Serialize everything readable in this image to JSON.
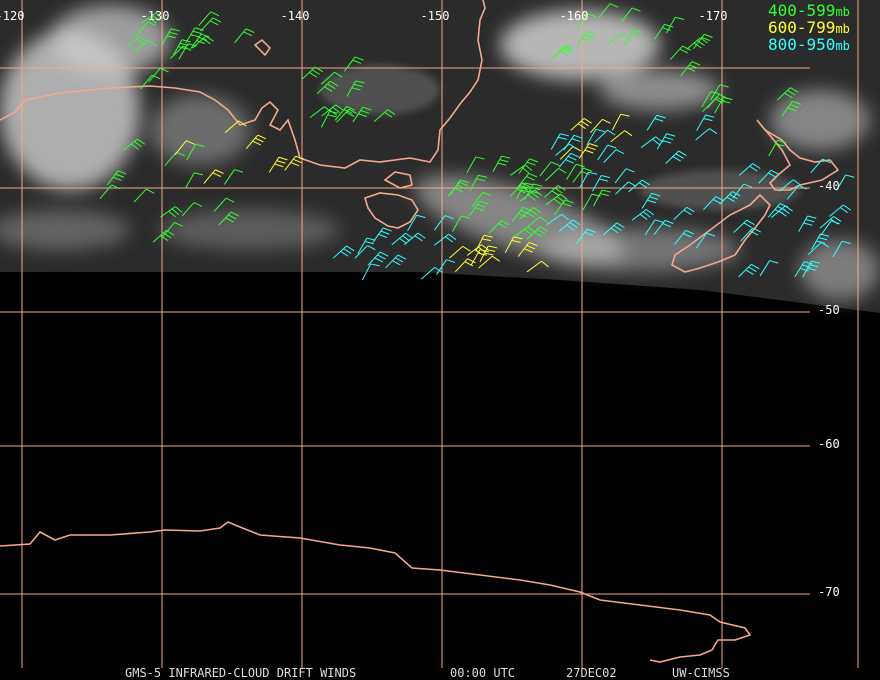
{
  "map": {
    "longitude_labels": [
      "-120",
      "-130",
      "-140",
      "-150",
      "-160",
      "-170"
    ],
    "latitude_labels": [
      "-40",
      "-50",
      "-60",
      "-70"
    ]
  },
  "legend": [
    {
      "range": "400-599",
      "unit": "mb"
    },
    {
      "range": "600-799",
      "unit": "mb"
    },
    {
      "range": "800-950",
      "unit": "mb"
    }
  ],
  "footer": [
    "GMS-5 INFRARED-CLOUD DRIFT WINDS",
    "00:00 UTC",
    "27DEC02",
    "UW-CIMSS"
  ]
}
